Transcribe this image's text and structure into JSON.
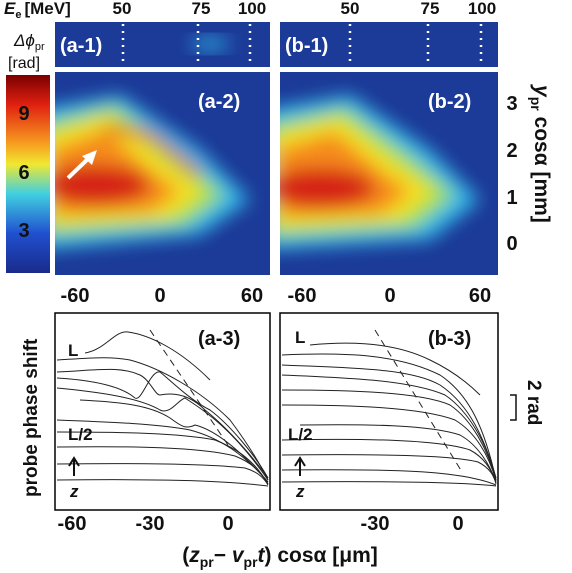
{
  "energy_axis": {
    "symbol": "E",
    "sub": "e",
    "unit": "[MeV]",
    "ticks_a": [
      "50",
      "75",
      "100"
    ],
    "ticks_b": [
      "50",
      "75",
      "100"
    ]
  },
  "colorbar": {
    "symbol": "Δϕ",
    "sub": "pr",
    "unit": "[rad]",
    "ticks": [
      "9",
      "6",
      "3"
    ]
  },
  "panels": {
    "a1": "(a-1)",
    "b1": "(b-1)",
    "a2": "(a-2)",
    "b2": "(b-2)",
    "a3": "(a-3)",
    "b3": "(b-3)"
  },
  "middle_axis": {
    "ticks_a": [
      "-60",
      "0",
      "60"
    ],
    "ticks_b": [
      "-60",
      "0",
      "60"
    ]
  },
  "right_axis": {
    "symbol": "y",
    "sub": "pr",
    "rest": " cosα [mm]",
    "ticks": [
      "3",
      "2",
      "1",
      "0"
    ]
  },
  "bottom_axis": {
    "ylabel": "probe phase shift",
    "ticks_a": [
      "-60",
      "-30",
      "0"
    ],
    "ticks_b": [
      "-30",
      "0"
    ],
    "xlabel": [
      "(",
      "z",
      "pr",
      "− ",
      "v",
      "pr",
      "t",
      ") cosα [μm]"
    ],
    "scale": "2 rad"
  },
  "markers": {
    "L": "L",
    "half": "L/2",
    "z": "z"
  }
}
